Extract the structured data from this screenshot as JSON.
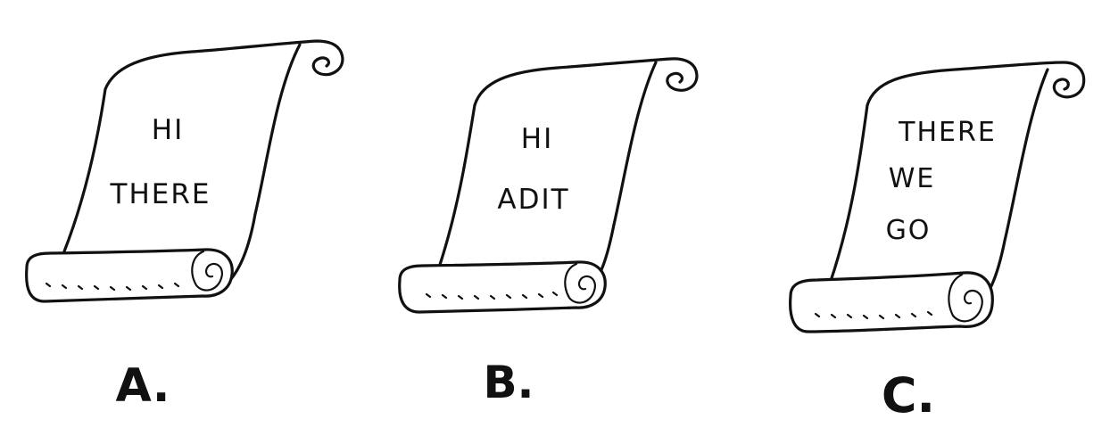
{
  "scrolls": [
    {
      "caption": "A.",
      "lines": [
        "HI",
        "THERE"
      ]
    },
    {
      "caption": "B.",
      "lines": [
        "HI",
        "ADIT"
      ]
    },
    {
      "caption": "C.",
      "lines": [
        "THERE",
        "WE",
        "GO"
      ]
    }
  ],
  "colors": {
    "ink": "#111111",
    "paper": "#ffffff"
  }
}
